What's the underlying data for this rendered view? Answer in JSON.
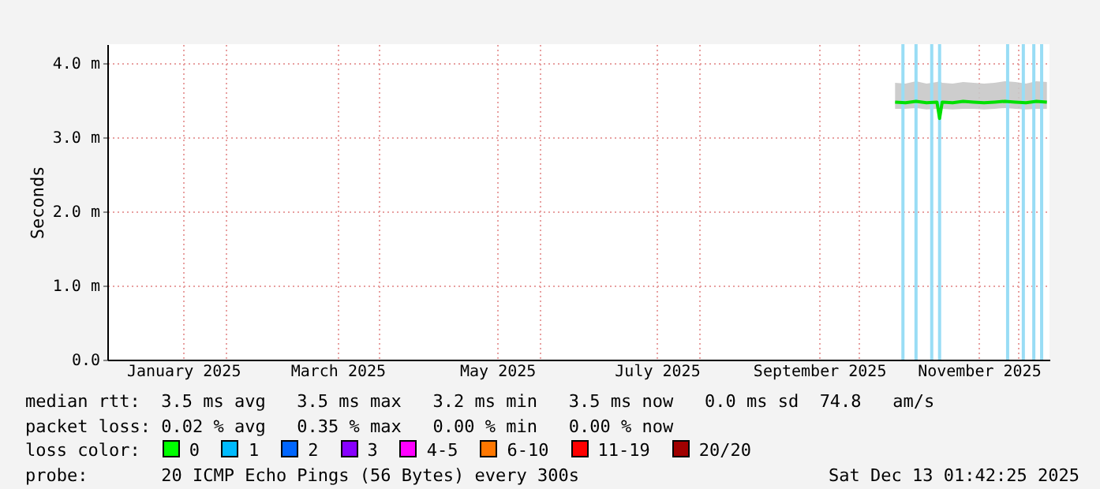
{
  "chart_data": {
    "type": "line",
    "ylabel": "Seconds",
    "x": [
      "2025-10-15",
      "2025-10-19",
      "2025-10-23",
      "2025-10-27",
      "2025-10-31",
      "2025-11-01",
      "2025-11-02",
      "2025-11-06",
      "2025-11-10",
      "2025-11-14",
      "2025-11-18",
      "2025-11-22",
      "2025-11-26",
      "2025-11-30",
      "2025-12-04",
      "2025-12-08",
      "2025-12-12"
    ],
    "series": [
      {
        "color": "#00e000",
        "values": [
          3.47,
          3.46,
          3.48,
          3.46,
          3.47,
          3.25,
          3.47,
          3.46,
          3.48,
          3.47,
          3.46,
          3.47,
          3.48,
          3.47,
          3.46,
          3.48,
          3.47
        ],
        "lower": [
          3.38,
          3.38,
          3.39,
          3.37,
          3.38,
          3.2,
          3.38,
          3.37,
          3.38,
          3.38,
          3.37,
          3.38,
          3.39,
          3.38,
          3.37,
          3.38,
          3.38
        ],
        "upper": [
          3.73,
          3.72,
          3.75,
          3.72,
          3.74,
          3.75,
          3.73,
          3.72,
          3.74,
          3.73,
          3.72,
          3.73,
          3.75,
          3.74,
          3.72,
          3.75,
          3.74
        ]
      }
    ],
    "xlim": [
      "2024-12-18",
      "2025-12-13"
    ],
    "xticks": [
      {
        "value": "2025-01-16",
        "label": "January 2025"
      },
      {
        "value": "2025-02-01",
        "label": null
      },
      {
        "value": "2025-03-16",
        "label": "March 2025"
      },
      {
        "value": "2025-04-01",
        "label": null
      },
      {
        "value": "2025-05-16",
        "label": "May 2025"
      },
      {
        "value": "2025-06-01",
        "label": null
      },
      {
        "value": "2025-07-16",
        "label": "July 2025"
      },
      {
        "value": "2025-08-01",
        "label": null
      },
      {
        "value": "2025-09-16",
        "label": "September 2025"
      },
      {
        "value": "2025-10-01",
        "label": null
      },
      {
        "value": "2025-11-16",
        "label": "November 2025"
      },
      {
        "value": "2025-12-01",
        "label": null
      }
    ],
    "ylim": [
      0,
      4.25
    ],
    "yticks": [
      {
        "value": 0,
        "label": "0.0"
      },
      {
        "value": 1,
        "label": "1.0 m"
      },
      {
        "value": 2,
        "label": "2.0 m"
      },
      {
        "value": 3,
        "label": "3.0 m"
      },
      {
        "value": 4,
        "label": "4.0 m"
      }
    ],
    "grid": true,
    "ref_lines": [
      {
        "axis": "x",
        "value": "2025-10-18",
        "color": "#99ddf5"
      },
      {
        "axis": "x",
        "value": "2025-10-23",
        "color": "#99ddf5"
      },
      {
        "axis": "x",
        "value": "2025-10-29",
        "color": "#99ddf5"
      },
      {
        "axis": "x",
        "value": "2025-11-01",
        "color": "#99ddf5"
      },
      {
        "axis": "x",
        "value": "2025-11-27",
        "color": "#99ddf5"
      },
      {
        "axis": "x",
        "value": "2025-12-03",
        "color": "#99ddf5"
      },
      {
        "axis": "x",
        "value": "2025-12-07",
        "color": "#99ddf5"
      },
      {
        "axis": "x",
        "value": "2025-12-10",
        "color": "#99ddf5"
      }
    ],
    "annotations": [
      "median rtt:  3.5 ms avg   3.5 ms max   3.2 ms min   3.5 ms now   0.0 ms sd  74.8   am/s",
      "packet loss: 0.02 % avg   0.35 % max   0.00 % min   0.00 % now",
      "loss color:",
      "0",
      "1",
      "2",
      "3",
      "4-5",
      "6-10",
      "11-19",
      "20/20",
      "probe:       20 ICMP Echo Pings (56 Bytes) every 300s",
      "Sat Dec 13 01:42:25 2025"
    ]
  }
}
